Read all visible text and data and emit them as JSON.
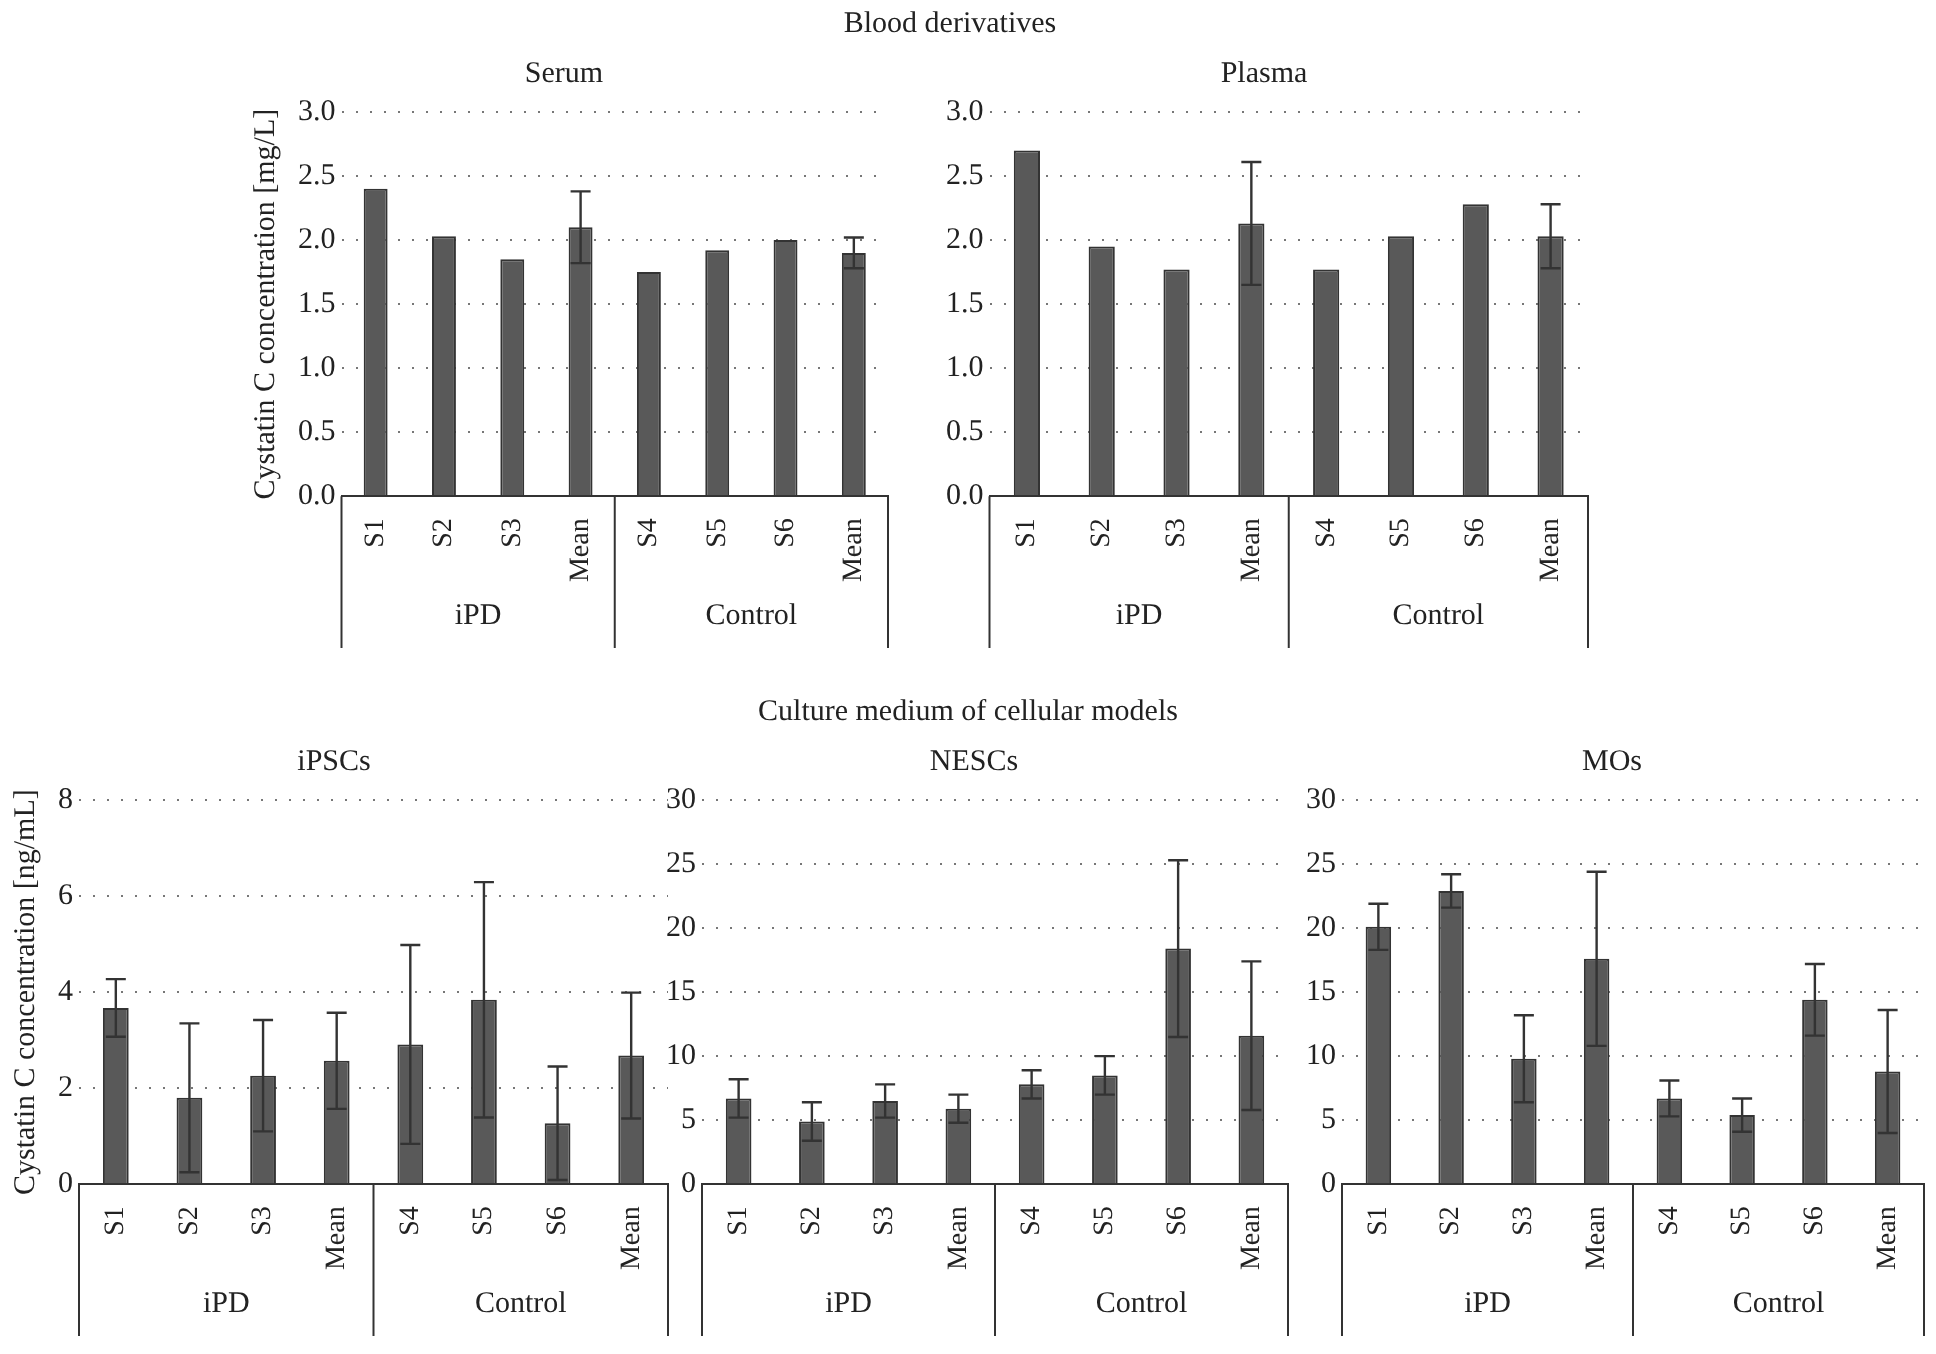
{
  "chart_data": [
    {
      "type": "bar",
      "title": "Serum",
      "ylabel": "Cystatin C concentration [mg/L]",
      "annotations": [
        "Blood derivatives",
        "iPD",
        "Control"
      ],
      "categories": [
        "S1",
        "S2",
        "S3",
        "Mean",
        "S4",
        "S5",
        "S6",
        "Mean"
      ],
      "color": "#595959",
      "values": [
        2.4,
        2.03,
        1.85,
        2.1,
        1.75,
        1.92,
        2.0,
        1.9
      ],
      "errors": [
        null,
        null,
        null,
        0.28,
        null,
        null,
        null,
        0.12
      ],
      "ylim": [
        0,
        3
      ],
      "yticks": [
        {
          "value": 0,
          "label": "0.0"
        },
        {
          "value": 0.5,
          "label": "0.5"
        },
        {
          "value": 1,
          "label": "1.0"
        },
        {
          "value": 1.5,
          "label": "1.5"
        },
        {
          "value": 2,
          "label": "2.0"
        },
        {
          "value": 2.5,
          "label": "2.5"
        },
        {
          "value": 3,
          "label": "3.0"
        }
      ],
      "grid": "y",
      "legend": false
    },
    {
      "type": "bar",
      "title": "Plasma",
      "annotations": [
        "iPD",
        "Control"
      ],
      "categories": [
        "S1",
        "S2",
        "S3",
        "Mean",
        "S4",
        "S5",
        "S6",
        "Mean"
      ],
      "color": "#595959",
      "values": [
        2.7,
        1.95,
        1.77,
        2.13,
        1.77,
        2.03,
        2.28,
        2.03
      ],
      "errors": [
        null,
        null,
        null,
        0.48,
        null,
        null,
        null,
        0.25
      ],
      "ylim": [
        0,
        3
      ],
      "yticks": [
        {
          "value": 0,
          "label": "0.0"
        },
        {
          "value": 0.5,
          "label": "0.5"
        },
        {
          "value": 1,
          "label": "1.0"
        },
        {
          "value": 1.5,
          "label": "1.5"
        },
        {
          "value": 2,
          "label": "2.0"
        },
        {
          "value": 2.5,
          "label": "2.5"
        },
        {
          "value": 3,
          "label": "3.0"
        }
      ],
      "grid": "y",
      "legend": false
    },
    {
      "type": "bar",
      "title": "iPSCs",
      "ylabel": "Cystatin C concentration [ng/mL]",
      "annotations": [
        "Culture medium of cellular models",
        "iPD",
        "Control"
      ],
      "categories": [
        "S1",
        "S2",
        "S3",
        "Mean",
        "S4",
        "S5",
        "S6",
        "Mean"
      ],
      "color": "#595959",
      "values": [
        3.67,
        1.8,
        2.26,
        2.57,
        2.91,
        3.84,
        1.27,
        2.68
      ],
      "errors": [
        0.6,
        1.55,
        1.16,
        1.0,
        2.07,
        2.45,
        1.18,
        1.31
      ],
      "ylim": [
        0,
        8
      ],
      "yticks": [
        0,
        2,
        4,
        6,
        8
      ],
      "grid": "y",
      "legend": false
    },
    {
      "type": "bar",
      "title": "NESCs",
      "annotations": [
        "iPD",
        "Control"
      ],
      "categories": [
        "S1",
        "S2",
        "S3",
        "Mean",
        "S4",
        "S5",
        "S6",
        "Mean"
      ],
      "color": "#595959",
      "values": [
        6.7,
        4.9,
        6.5,
        5.9,
        7.8,
        8.5,
        18.4,
        11.6
      ],
      "errors": [
        1.5,
        1.5,
        1.3,
        1.1,
        1.1,
        1.5,
        6.9,
        5.8
      ],
      "ylim": [
        0,
        30
      ],
      "yticks": [
        0,
        5,
        10,
        15,
        20,
        25,
        30
      ],
      "grid": "y",
      "legend": false
    },
    {
      "type": "bar",
      "title": "MOs",
      "annotations": [
        "iPD",
        "Control"
      ],
      "categories": [
        "S1",
        "S2",
        "S3",
        "Mean",
        "S4",
        "S5",
        "S6",
        "Mean"
      ],
      "color": "#595959",
      "values": [
        20.1,
        22.9,
        9.8,
        17.6,
        6.7,
        5.4,
        14.4,
        8.8
      ],
      "errors": [
        1.8,
        1.3,
        3.4,
        6.8,
        1.4,
        1.3,
        2.8,
        4.8
      ],
      "ylim": [
        0,
        30
      ],
      "yticks": [
        0,
        5,
        10,
        15,
        20,
        25,
        30
      ],
      "grid": "y",
      "legend": false
    }
  ]
}
